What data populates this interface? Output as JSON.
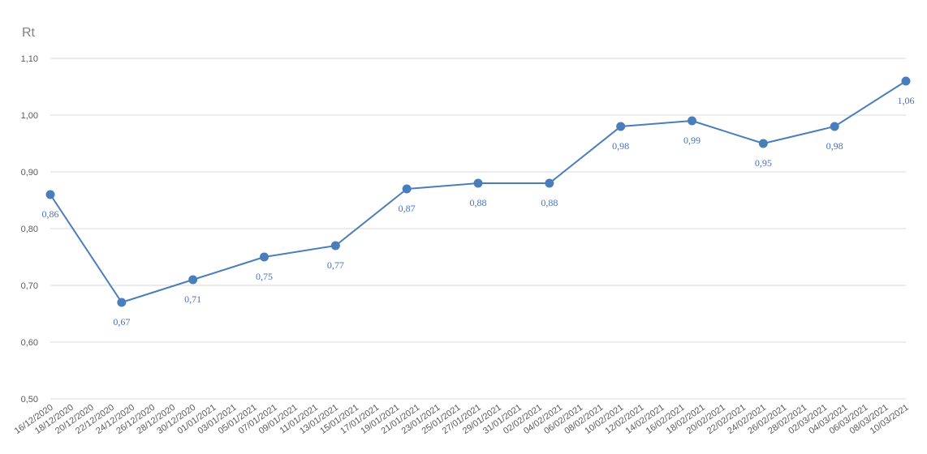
{
  "chart_data": {
    "type": "line",
    "ylabel": "Rt",
    "ylim": [
      0.5,
      1.1
    ],
    "yticks": [
      "0,50",
      "0,60",
      "0,70",
      "0,80",
      "0,90",
      "1,00",
      "1,10"
    ],
    "grid": true,
    "categories": [
      "16/12/2020",
      "18/12/2020",
      "20/12/2020",
      "22/12/2020",
      "24/12/2020",
      "26/12/2020",
      "28/12/2020",
      "30/12/2020",
      "01/01/2021",
      "03/01/2021",
      "05/01/2021",
      "07/01/2021",
      "09/01/2021",
      "11/01/2021",
      "13/01/2021",
      "15/01/2021",
      "17/01/2021",
      "19/01/2021",
      "21/01/2021",
      "23/01/2021",
      "25/01/2021",
      "27/01/2021",
      "29/01/2021",
      "31/01/2021",
      "02/02/2021",
      "04/02/2021",
      "06/02/2021",
      "08/02/2021",
      "10/02/2021",
      "12/02/2021",
      "14/02/2021",
      "16/02/2021",
      "18/02/2021",
      "20/02/2021",
      "22/02/2021",
      "24/02/2021",
      "26/02/2021",
      "28/02/2021",
      "02/03/2021",
      "04/03/2021",
      "06/03/2021",
      "08/03/2021",
      "10/03/2021"
    ],
    "series": [
      {
        "color": "#4a7ebb",
        "points": [
          {
            "x": "16/12/2020",
            "y": 0.86,
            "label": "0,86"
          },
          {
            "x": "23/12/2020",
            "y": 0.67,
            "label": "0,67"
          },
          {
            "x": "30/12/2020",
            "y": 0.71,
            "label": "0,71"
          },
          {
            "x": "06/01/2021",
            "y": 0.75,
            "label": "0,75"
          },
          {
            "x": "13/01/2021",
            "y": 0.77,
            "label": "0,77"
          },
          {
            "x": "20/01/2021",
            "y": 0.87,
            "label": "0,87"
          },
          {
            "x": "27/01/2021",
            "y": 0.88,
            "label": "0,88"
          },
          {
            "x": "03/02/2021",
            "y": 0.88,
            "label": "0,88"
          },
          {
            "x": "10/02/2021",
            "y": 0.98,
            "label": "0,98"
          },
          {
            "x": "17/02/2021",
            "y": 0.99,
            "label": "0,99"
          },
          {
            "x": "24/02/2021",
            "y": 0.95,
            "label": "0,95"
          },
          {
            "x": "03/03/2021",
            "y": 0.98,
            "label": "0,98"
          },
          {
            "x": "10/03/2021",
            "y": 1.06,
            "label": "1,06"
          }
        ]
      }
    ]
  }
}
